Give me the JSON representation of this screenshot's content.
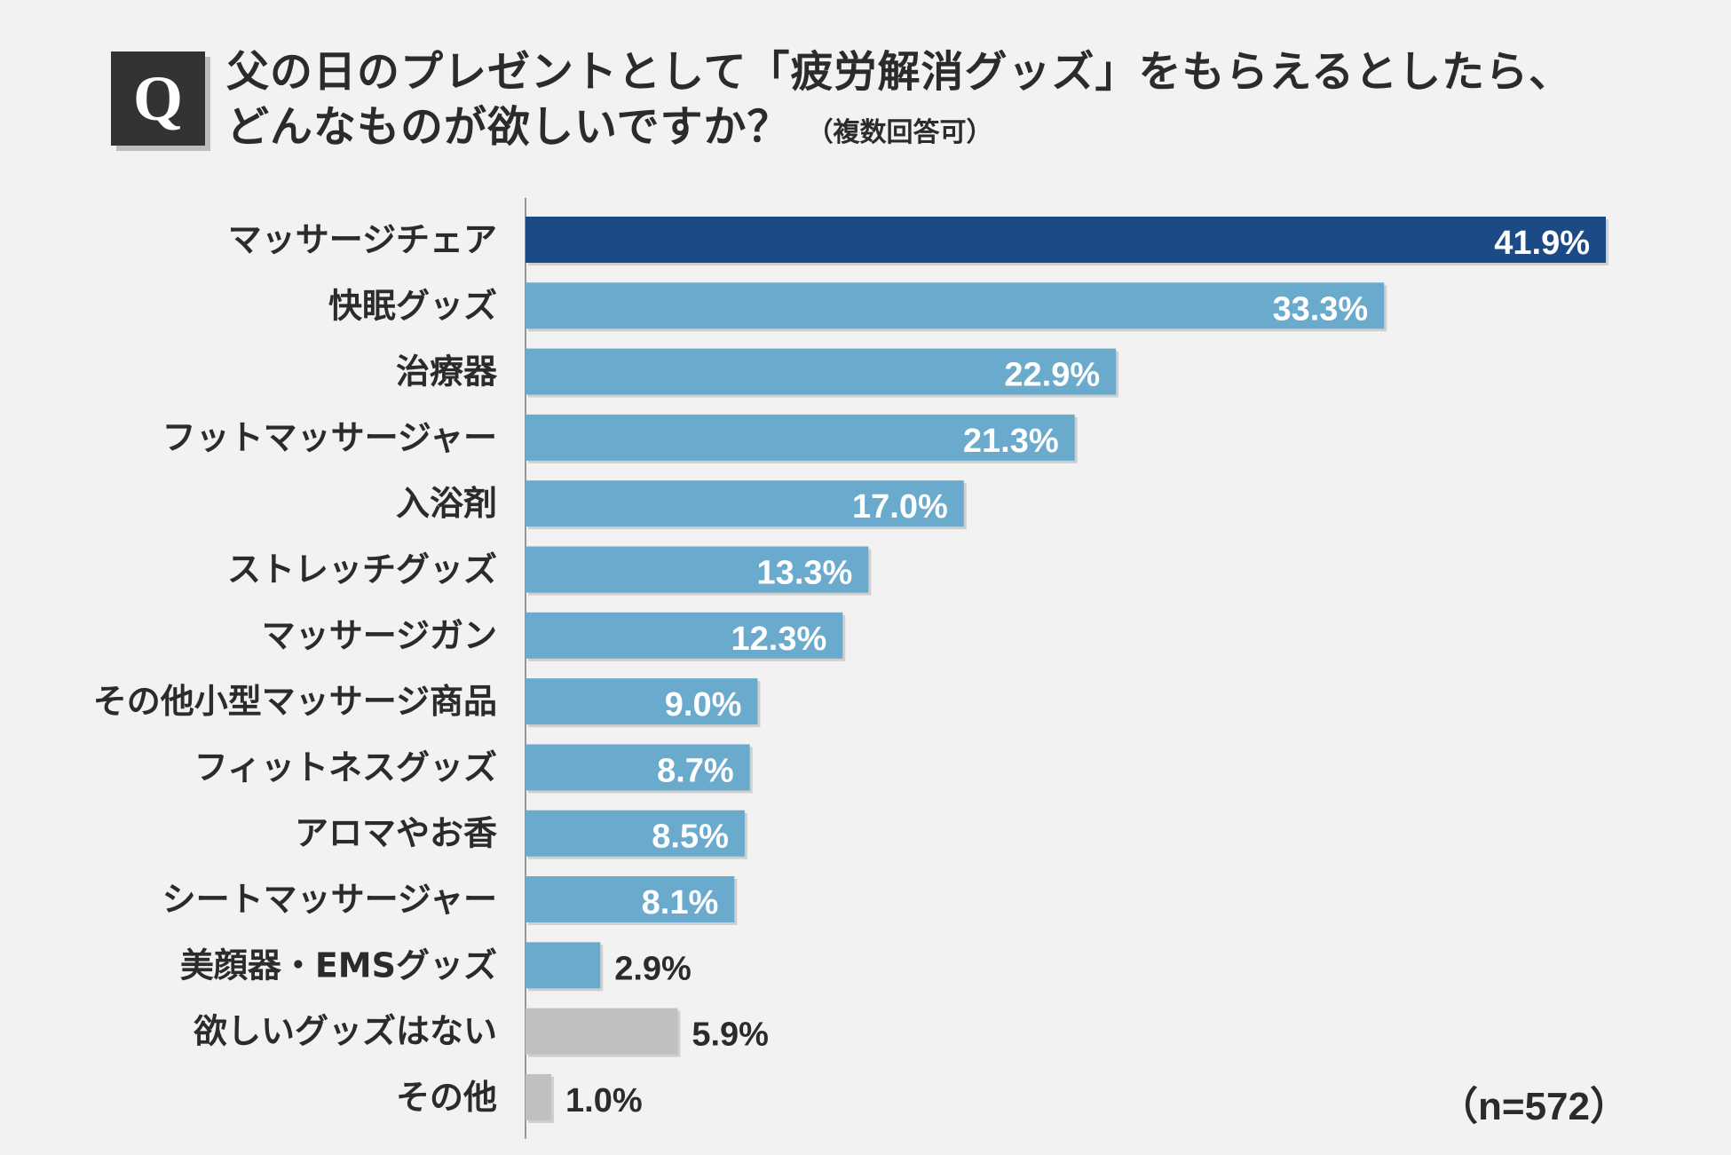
{
  "question": {
    "badge": "Q",
    "line1": "父の日のプレゼントとして「疲労解消グッズ」をもらえるとしたら、",
    "line2": "どんなものが欲しいですか？",
    "note": "（複数回答可）"
  },
  "sample_size": "（n=572）",
  "colors": {
    "highlight": "#1b4a86",
    "primary": "#6aaacc",
    "gray": "#c0c0c0",
    "axis": "#999999",
    "label_inside": "#ffffff",
    "label_outside": "#2b2b2b"
  },
  "chart_data": {
    "type": "bar",
    "orientation": "horizontal",
    "title": "父の日のプレゼントとして「疲労解消グッズ」をもらえるとしたら、どんなものが欲しいですか？（複数回答可）",
    "xlabel": "",
    "ylabel": "",
    "xlim": [
      0,
      45
    ],
    "grid": false,
    "categories": [
      "マッサージチェア",
      "快眠グッズ",
      "治療器",
      "フットマッサージャー",
      "入浴剤",
      "ストレッチグッズ",
      "マッサージガン",
      "その他小型マッサージ商品",
      "フィットネスグッズ",
      "アロマやお香",
      "シートマッサージャー",
      "美顔器・EMSグッズ",
      "欲しいグッズはない",
      "その他"
    ],
    "values": [
      41.9,
      33.3,
      22.9,
      21.3,
      17.0,
      13.3,
      12.3,
      9.0,
      8.7,
      8.5,
      8.1,
      2.9,
      5.9,
      1.0
    ],
    "value_labels": [
      "41.9%",
      "33.3%",
      "22.9%",
      "21.3%",
      "17.0%",
      "13.3%",
      "12.3%",
      "9.0%",
      "8.7%",
      "8.5%",
      "8.1%",
      "2.9%",
      "5.9%",
      "1.0%"
    ],
    "bar_groups": [
      "highlight",
      "primary",
      "primary",
      "primary",
      "primary",
      "primary",
      "primary",
      "primary",
      "primary",
      "primary",
      "primary",
      "primary",
      "gray",
      "gray"
    ]
  }
}
